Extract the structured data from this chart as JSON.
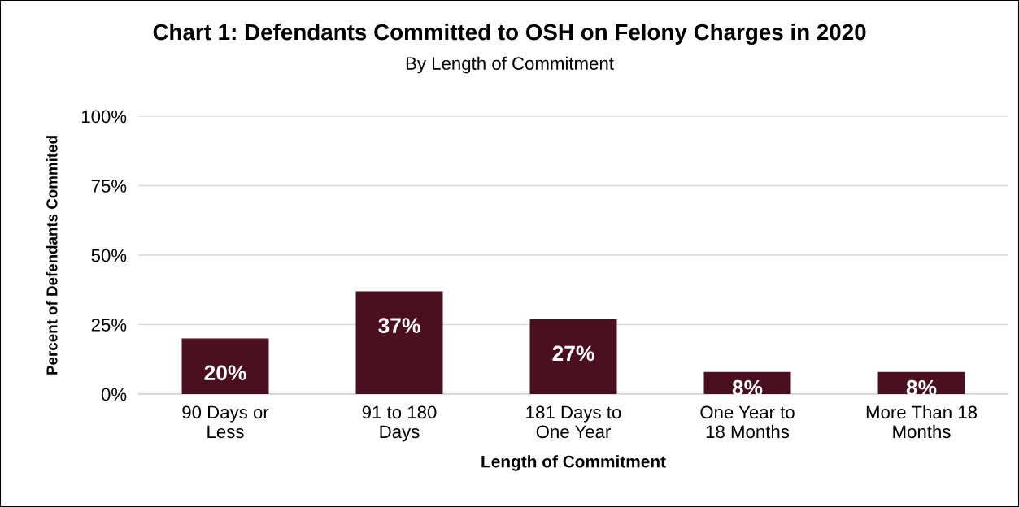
{
  "chart_data": {
    "type": "bar",
    "title": "Chart 1: Defendants Committed to OSH on Felony Charges in 2020",
    "subtitle": "By Length of Commitment",
    "xlabel": "Length of Commitment",
    "ylabel": "Percent of Defendants Commited",
    "categories": [
      "90 Days or\nLess",
      "91 to 180\nDays",
      "181 Days to\nOne Year",
      "One Year to\n18 Months",
      "More Than 18\nMonths"
    ],
    "values": [
      20,
      37,
      27,
      8,
      8
    ],
    "value_labels": [
      "20%",
      "37%",
      "27%",
      "8%",
      "8%"
    ],
    "color": "#4a1020",
    "ylim": [
      0,
      100
    ],
    "yticks": [
      {
        "value": 0,
        "label": "0%"
      },
      {
        "value": 25,
        "label": "25%"
      },
      {
        "value": 50,
        "label": "50%"
      },
      {
        "value": 75,
        "label": "75%"
      },
      {
        "value": 100,
        "label": "100%"
      }
    ],
    "grid": "y",
    "legend": false
  }
}
